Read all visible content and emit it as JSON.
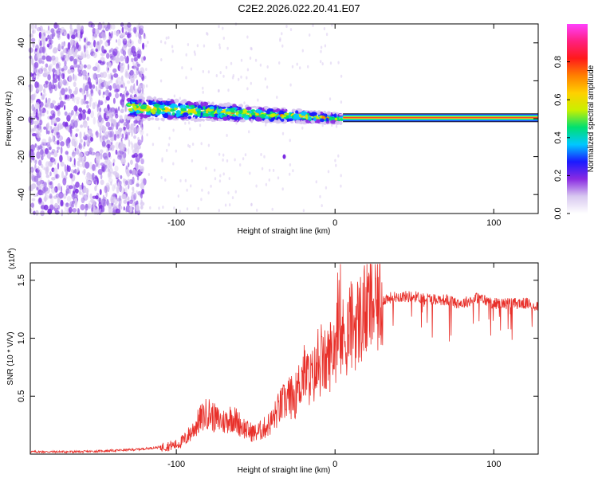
{
  "title": "C2E2.2026.022.20.41.E07",
  "colors": {
    "snr_line": "#e8302a",
    "axis": "#000000",
    "ridge": "#e0203a"
  },
  "chart_data": [
    {
      "type": "heatmap",
      "name": "spectrogram",
      "xlabel": "Height of straight line (km)",
      "ylabel": "Frequency (Hz)",
      "xlim": [
        -192,
        128
      ],
      "ylim": [
        -50,
        50
      ],
      "x_ticks": [
        -100,
        0,
        100
      ],
      "x_tick_labels": [
        "-100",
        "0",
        "100"
      ],
      "y_ticks": [
        -40,
        -20,
        0,
        20,
        40
      ],
      "y_tick_labels": [
        "-40",
        "-20",
        "0",
        "20",
        "40"
      ],
      "features": {
        "noise_region_x": [
          -192,
          -120
        ],
        "signal_start_x": -130,
        "carrier_line_from_x": 5,
        "carrier_frequency": 0.5,
        "drift_start_frequency": 6,
        "drift_end_frequency": 0
      },
      "colorbar": {
        "label": "Normalized spectral amplitude",
        "range": [
          0,
          1
        ],
        "ticks": [
          0.0,
          0.2,
          0.4,
          0.6,
          0.8
        ],
        "tick_labels": [
          "0.0",
          "0.2",
          "0.4",
          "0.6",
          "0.8"
        ],
        "colormap": [
          "#ffffff",
          "#d8c8f0",
          "#8a2be2",
          "#1a1aff",
          "#00c8ff",
          "#00e070",
          "#c8f000",
          "#ffd000",
          "#ff8000",
          "#ff1a1a",
          "#ff2080",
          "#ff40ff"
        ]
      }
    },
    {
      "type": "line",
      "name": "snr",
      "xlabel": "Height of straight line (km)",
      "ylabel": "SNR (10 * V/V)",
      "scale_label": "(x10",
      "scale_exponent": "4",
      "scale_close": ")",
      "xlim": [
        -192,
        128
      ],
      "ylim": [
        0,
        1.65
      ],
      "x_ticks": [
        -100,
        0,
        100
      ],
      "x_tick_labels": [
        "-100",
        "0",
        "100"
      ],
      "y_ticks": [
        0.5,
        1.0,
        1.5
      ],
      "y_tick_labels": [
        "0.5",
        "1.0",
        "1.5"
      ],
      "series": [
        {
          "name": "SNR",
          "x": [
            -192,
            -160,
            -140,
            -125,
            -110,
            -100,
            -95,
            -90,
            -85,
            -80,
            -75,
            -70,
            -65,
            -60,
            -55,
            -50,
            -45,
            -40,
            -35,
            -30,
            -25,
            -20,
            -15,
            -10,
            -5,
            0,
            5,
            10,
            15,
            20,
            25,
            30,
            35,
            40,
            50,
            60,
            70,
            80,
            90,
            100,
            110,
            120,
            128
          ],
          "y": [
            0.02,
            0.02,
            0.03,
            0.04,
            0.06,
            0.08,
            0.12,
            0.2,
            0.3,
            0.36,
            0.3,
            0.28,
            0.32,
            0.26,
            0.2,
            0.18,
            0.22,
            0.28,
            0.4,
            0.48,
            0.5,
            0.7,
            0.65,
            0.75,
            0.8,
            0.95,
            1.0,
            1.1,
            1.15,
            1.25,
            1.3,
            1.33,
            1.35,
            1.36,
            1.36,
            1.34,
            1.33,
            1.3,
            1.35,
            1.3,
            1.3,
            1.3,
            1.28
          ]
        }
      ]
    }
  ]
}
